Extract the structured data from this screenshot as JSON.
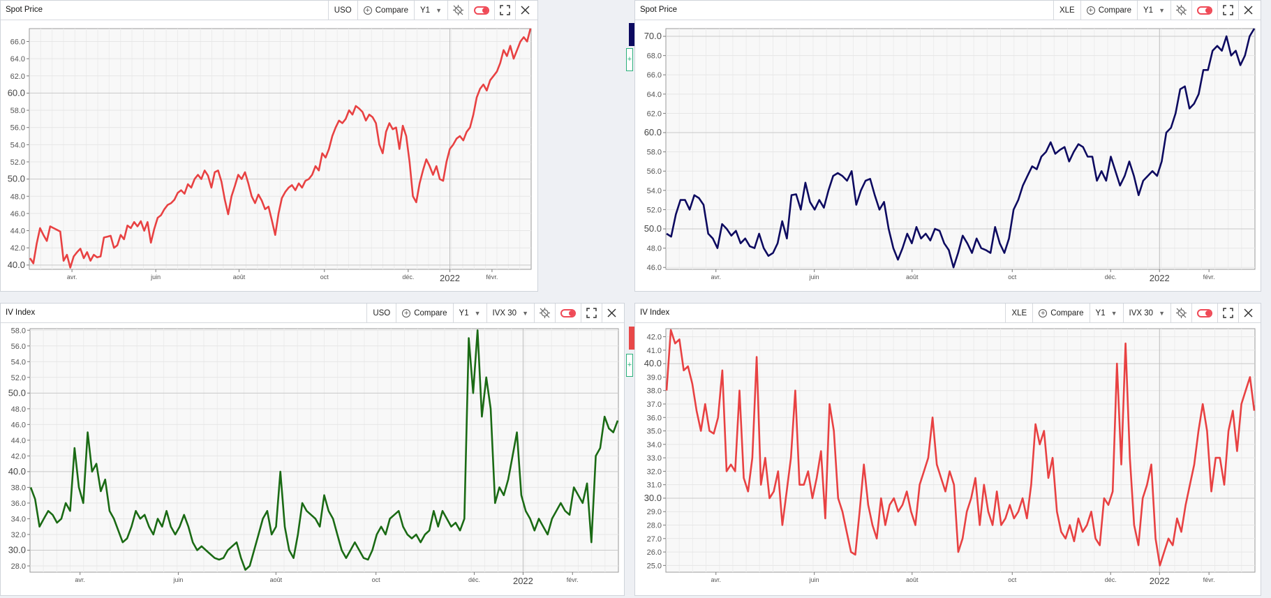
{
  "panels": [
    {
      "title": "Spot Price",
      "ticker": "USO",
      "compare_label": "Compare",
      "period": "Y1",
      "measure": "",
      "side_color": "#0d0a60"
    },
    {
      "title": "Spot Price",
      "ticker": "XLE",
      "compare_label": "Compare",
      "period": "Y1",
      "measure": ""
    },
    {
      "title": "IV Index",
      "ticker": "USO",
      "compare_label": "Compare",
      "period": "Y1",
      "measure": "IVX 30",
      "side_color": "#e84848"
    },
    {
      "title": "IV Index",
      "ticker": "XLE",
      "compare_label": "Compare",
      "period": "Y1",
      "measure": "IVX 30"
    }
  ],
  "chart_data": [
    {
      "type": "line",
      "title": "Spot Price",
      "series": [
        {
          "name": "USO",
          "color": "#e84142",
          "values": [
            40.8,
            40.2,
            42.5,
            44.3,
            43.5,
            42.8,
            44.5,
            44.3,
            44.1,
            43.9,
            40.5,
            41.2,
            39.7,
            41.0,
            41.5,
            41.9,
            40.8,
            41.5,
            40.5,
            41.2,
            40.9,
            41.0,
            43.2,
            43.3,
            43.4,
            42.0,
            42.3,
            43.5,
            43.0,
            44.6,
            44.3,
            45.0,
            44.5,
            45.1,
            44.0,
            45.0,
            42.6,
            44.2,
            45.5,
            45.8,
            46.5,
            47.0,
            47.2,
            47.6,
            48.4,
            48.7,
            48.3,
            49.4,
            49.0,
            50.0,
            50.5,
            50.0,
            51.0,
            50.4,
            49.0,
            50.8,
            51.0,
            49.7,
            47.6,
            45.9,
            48.0,
            49.2,
            50.5,
            50.0,
            50.8,
            49.5,
            48.0,
            47.2,
            48.2,
            47.5,
            46.5,
            46.8,
            45.2,
            43.5,
            46.0,
            47.8,
            48.5,
            49.0,
            49.3,
            48.7,
            49.5,
            49.0,
            49.8,
            50.0,
            50.5,
            51.5,
            51.0,
            53.0,
            52.5,
            53.5,
            55.0,
            56.0,
            56.8,
            56.5,
            57.0,
            58.0,
            57.5,
            58.5,
            58.2,
            57.8,
            56.8,
            57.5,
            57.2,
            56.5,
            54.0,
            53.0,
            55.5,
            56.5,
            55.8,
            56.0,
            53.5,
            56.2,
            55.0,
            52.0,
            48.0,
            47.3,
            49.5,
            51.0,
            52.3,
            51.5,
            50.5,
            51.5,
            50.0,
            49.8,
            52.0,
            53.5,
            54.0,
            54.7,
            55.0,
            54.5,
            55.5,
            56.0,
            57.5,
            59.5,
            60.5,
            61.0,
            60.3,
            61.5,
            62.0,
            62.5,
            63.5,
            65.0,
            64.3,
            65.5,
            64.0,
            65.0,
            66.0,
            66.5,
            66.0,
            67.5
          ]
        }
      ],
      "ylim": [
        39.5,
        67.5
      ],
      "y_ticks": [
        "40.0",
        "42.0",
        "44.0",
        "46.0",
        "48.0",
        "50.0",
        "52.0",
        "54.0",
        "56.0",
        "58.0",
        "60.0",
        "62.0",
        "64.0",
        "66.0"
      ],
      "x_labels": [
        "avr.",
        "juin",
        "août",
        "oct",
        "déc.",
        "2022",
        "févr."
      ],
      "grid": true
    },
    {
      "type": "line",
      "title": "Spot Price",
      "series": [
        {
          "name": "XLE",
          "color": "#0d0a60",
          "values": [
            49.5,
            49.2,
            51.5,
            53.0,
            53.0,
            52.0,
            53.5,
            53.2,
            52.5,
            49.5,
            49.0,
            48.0,
            50.5,
            50.0,
            49.3,
            49.8,
            48.5,
            49.0,
            48.2,
            48.0,
            49.5,
            48.0,
            47.2,
            47.5,
            48.5,
            50.8,
            49.0,
            53.5,
            53.6,
            52.0,
            54.8,
            52.8,
            52.0,
            53.0,
            52.2,
            54.0,
            55.5,
            55.8,
            55.5,
            55.0,
            56.0,
            52.5,
            54.0,
            55.0,
            55.2,
            53.5,
            52.0,
            52.8,
            50.0,
            48.0,
            46.8,
            48.0,
            49.5,
            48.5,
            50.2,
            49.0,
            49.5,
            48.8,
            50.0,
            49.8,
            48.5,
            47.8,
            46.0,
            47.5,
            49.3,
            48.5,
            47.5,
            49.0,
            48.0,
            47.8,
            47.5,
            50.2,
            48.5,
            47.5,
            49.0,
            52.0,
            53.0,
            54.5,
            55.5,
            56.5,
            56.2,
            57.5,
            58.0,
            59.0,
            57.8,
            58.2,
            58.5,
            57.0,
            58.0,
            58.8,
            58.5,
            57.5,
            57.5,
            55.0,
            56.0,
            55.0,
            57.5,
            56.0,
            54.5,
            55.5,
            57.0,
            55.5,
            53.5,
            55.0,
            55.5,
            56.0,
            55.5,
            57.0,
            60.0,
            60.5,
            62.0,
            64.5,
            64.8,
            62.5,
            63.0,
            64.0,
            66.5,
            66.5,
            68.5,
            69.0,
            68.5,
            70.0,
            68.0,
            68.5,
            67.0,
            68.0,
            70.0,
            70.8
          ]
        }
      ],
      "ylim": [
        45.8,
        70.8
      ],
      "y_ticks": [
        "46.0",
        "48.0",
        "50.0",
        "52.0",
        "54.0",
        "56.0",
        "58.0",
        "60.0",
        "62.0",
        "64.0",
        "66.0",
        "68.0",
        "70.0"
      ],
      "x_labels": [
        "avr.",
        "juin",
        "août",
        "oct",
        "déc.",
        "2022",
        "févr."
      ],
      "grid": true
    },
    {
      "type": "line",
      "title": "IV Index",
      "series": [
        {
          "name": "USO IVX 30",
          "color": "#1a6a14",
          "values": [
            38.0,
            36.5,
            33.0,
            34.0,
            35.0,
            34.5,
            33.5,
            34.0,
            36.0,
            35.0,
            43.0,
            38.0,
            36.0,
            45.0,
            40.0,
            41.0,
            37.5,
            39.0,
            35.0,
            34.0,
            32.5,
            31.0,
            31.5,
            33.0,
            35.0,
            34.0,
            34.5,
            33.0,
            32.0,
            34.0,
            33.0,
            35.0,
            33.0,
            32.0,
            33.0,
            34.5,
            33.0,
            31.0,
            30.0,
            30.5,
            30.0,
            29.5,
            29.0,
            28.8,
            29.0,
            30.0,
            30.5,
            31.0,
            29.0,
            27.5,
            28.0,
            30.0,
            32.0,
            34.0,
            35.0,
            32.0,
            33.0,
            40.0,
            33.0,
            30.0,
            29.0,
            32.0,
            36.0,
            35.0,
            34.5,
            34.0,
            33.0,
            37.0,
            35.0,
            34.0,
            32.0,
            30.0,
            29.0,
            30.0,
            31.0,
            30.0,
            29.0,
            28.8,
            30.0,
            32.0,
            33.0,
            32.0,
            34.0,
            34.5,
            35.0,
            33.0,
            32.0,
            31.5,
            32.0,
            31.0,
            32.0,
            32.5,
            35.0,
            33.0,
            35.0,
            34.0,
            33.0,
            33.5,
            32.5,
            34.0,
            57.0,
            50.0,
            58.0,
            47.0,
            52.0,
            48.0,
            36.0,
            38.0,
            37.0,
            39.0,
            42.0,
            45.0,
            37.0,
            35.0,
            34.0,
            32.5,
            34.0,
            33.0,
            32.0,
            34.0,
            35.0,
            36.0,
            35.0,
            34.5,
            38.0,
            37.0,
            36.0,
            38.5,
            31.0,
            42.0,
            43.0,
            47.0,
            45.5,
            45.0,
            46.5
          ]
        }
      ],
      "ylim": [
        27.2,
        58.2
      ],
      "y_ticks": [
        "28.0",
        "30.0",
        "32.0",
        "34.0",
        "36.0",
        "38.0",
        "40.0",
        "42.0",
        "44.0",
        "46.0",
        "48.0",
        "50.0",
        "52.0",
        "54.0",
        "56.0",
        "58.0"
      ],
      "x_labels": [
        "avr.",
        "juin",
        "août",
        "oct",
        "déc.",
        "2022",
        "févr."
      ],
      "grid": true
    },
    {
      "type": "line",
      "title": "IV Index",
      "series": [
        {
          "name": "XLE IVX 30",
          "color": "#e84142",
          "values": [
            38.0,
            42.5,
            41.5,
            41.8,
            39.5,
            39.8,
            38.5,
            36.5,
            35.0,
            37.0,
            35.0,
            34.8,
            36.0,
            39.5,
            32.0,
            32.5,
            32.0,
            38.0,
            31.5,
            30.5,
            33.0,
            40.5,
            31.0,
            33.0,
            30.0,
            30.5,
            32.0,
            28.0,
            30.5,
            33.0,
            38.0,
            31.0,
            31.0,
            32.0,
            30.0,
            31.5,
            33.5,
            28.5,
            37.0,
            35.0,
            30.0,
            29.0,
            27.5,
            26.0,
            25.8,
            29.0,
            32.5,
            29.5,
            28.0,
            27.0,
            30.0,
            28.0,
            29.5,
            30.0,
            29.0,
            29.5,
            30.5,
            29.0,
            28.0,
            31.0,
            32.0,
            33.0,
            36.0,
            32.5,
            31.5,
            30.5,
            32.0,
            31.0,
            26.0,
            27.0,
            29.0,
            30.0,
            31.5,
            28.0,
            31.0,
            29.0,
            28.0,
            30.5,
            28.0,
            28.5,
            29.5,
            28.5,
            29.0,
            30.0,
            28.5,
            31.0,
            35.5,
            34.0,
            35.0,
            31.5,
            33.0,
            29.0,
            27.5,
            27.0,
            28.0,
            26.8,
            28.5,
            27.5,
            28.0,
            29.0,
            27.0,
            26.5,
            30.0,
            29.5,
            30.5,
            40.0,
            32.5,
            41.5,
            33.0,
            28.0,
            26.5,
            30.0,
            31.0,
            32.5,
            27.0,
            25.0,
            26.0,
            27.0,
            26.5,
            28.5,
            27.5,
            29.5,
            31.0,
            32.5,
            35.0,
            37.0,
            35.0,
            30.5,
            33.0,
            33.0,
            31.0,
            35.0,
            36.5,
            33.5,
            37.0,
            38.0,
            39.0,
            36.5
          ]
        }
      ],
      "ylim": [
        24.5,
        42.6
      ],
      "y_ticks": [
        "25.0",
        "26.0",
        "27.0",
        "28.0",
        "29.0",
        "30.0",
        "31.0",
        "32.0",
        "33.0",
        "34.0",
        "35.0",
        "36.0",
        "37.0",
        "38.0",
        "39.0",
        "40.0",
        "41.0",
        "42.0"
      ],
      "x_labels": [
        "avr.",
        "juin",
        "août",
        "oct",
        "déc.",
        "2022",
        "févr."
      ],
      "grid": true
    }
  ]
}
